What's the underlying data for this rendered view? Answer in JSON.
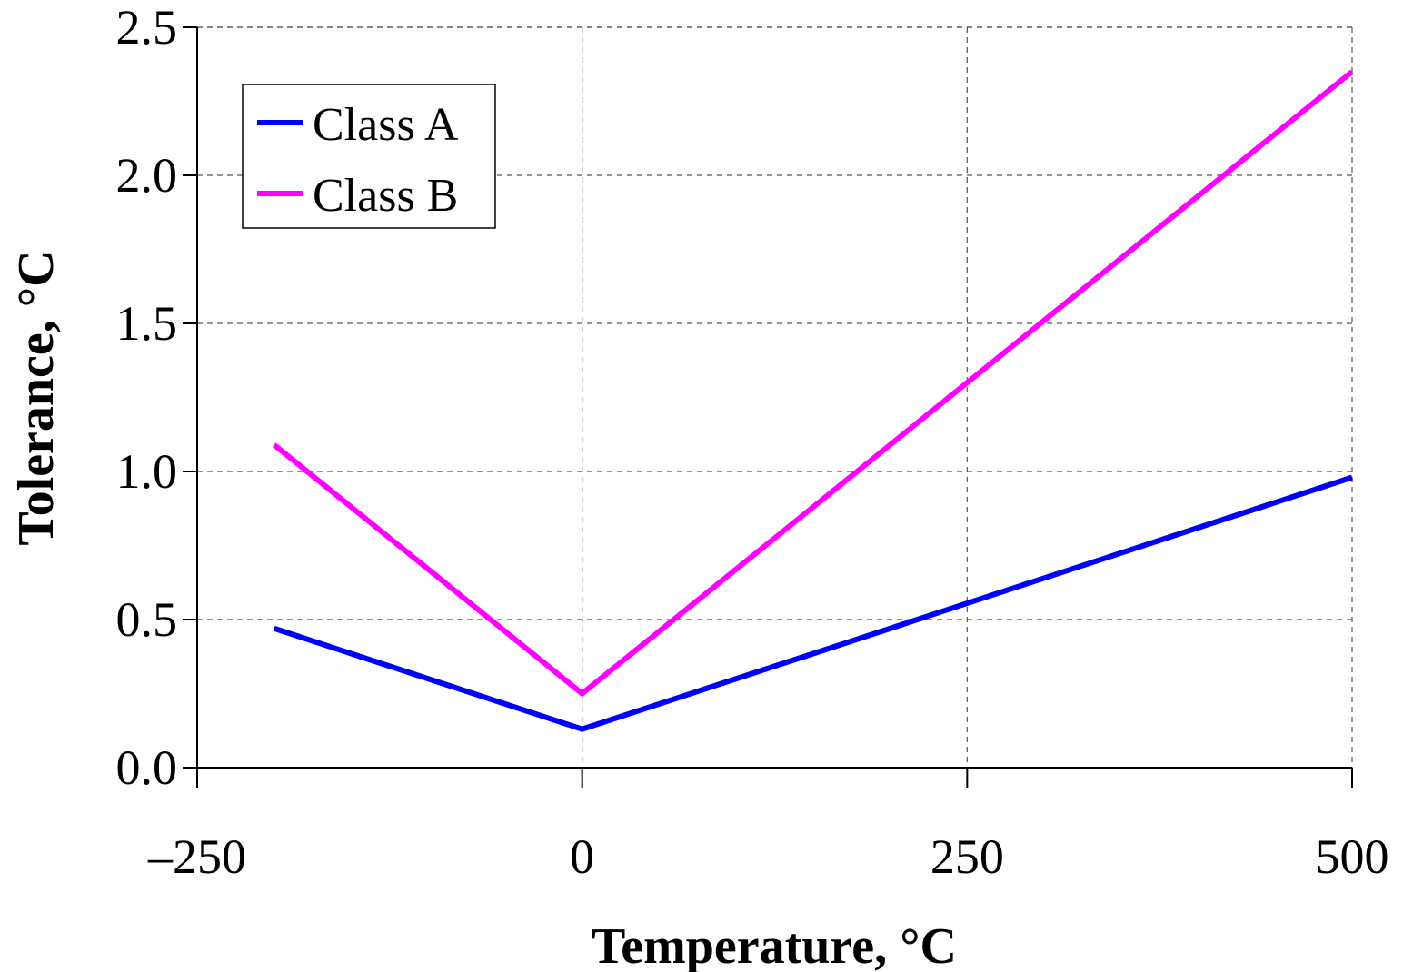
{
  "chart_data": {
    "type": "line",
    "xlabel": "Temperature, °C",
    "ylabel": "Tolerance, °C",
    "xlim": [
      -250,
      500
    ],
    "ylim": [
      0.0,
      2.5
    ],
    "x_ticks": [
      -250,
      0,
      250,
      500
    ],
    "x_tick_labels": [
      "–250",
      "0",
      "250",
      "500"
    ],
    "y_ticks": [
      0.0,
      0.5,
      1.0,
      1.5,
      2.0,
      2.5
    ],
    "y_tick_labels": [
      "0.0",
      "0.5",
      "1.0",
      "1.5",
      "2.0",
      "2.5"
    ],
    "grid": true,
    "legend_position": "top-left",
    "series": [
      {
        "name": "Class A",
        "color": "#0000ff",
        "x": [
          -200,
          0,
          500
        ],
        "y": [
          0.47,
          0.13,
          0.98
        ]
      },
      {
        "name": "Class B",
        "color": "#ff00ff",
        "x": [
          -200,
          0,
          500
        ],
        "y": [
          1.09,
          0.25,
          2.35
        ]
      }
    ]
  }
}
